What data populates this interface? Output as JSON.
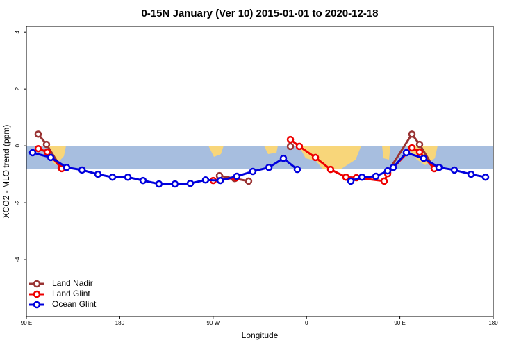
{
  "chart_data": {
    "type": "line",
    "title": "0-15N January (Ver 10)   2015-01-01 to 2020-12-18",
    "xlabel": "Longitude",
    "ylabel": "XCO2 - MLO trend (ppm)",
    "xlim": [
      0,
      360
    ],
    "xticks": [
      {
        "value": 0,
        "label": "90 E"
      },
      {
        "value": 72,
        "label": "180"
      },
      {
        "value": 144,
        "label": "90 W"
      },
      {
        "value": 216,
        "label": "0"
      },
      {
        "value": 288,
        "label": "90 E"
      },
      {
        "value": 360,
        "label": "180"
      }
    ],
    "ylim": [
      -6.0,
      4.2
    ],
    "yticks": [
      -4,
      -2,
      0,
      2,
      4
    ],
    "legend": "bottom-left",
    "series": [
      {
        "name": "Land Nadir",
        "color": "#993333",
        "x": [
          9.1,
          15.5,
          26.8,
          null,
          148.9,
          160.7,
          171.4,
          null,
          203.6,
          null,
          278.6,
          297.3,
          303.2,
          314.5
        ],
        "values": [
          0.41,
          0.05,
          -0.78,
          null,
          -1.05,
          -1.15,
          -1.24,
          null,
          -0.02,
          null,
          -0.93,
          0.41,
          0.05,
          -0.8
        ]
      },
      {
        "name": "Land Glint",
        "color": "#ee0000",
        "x": [
          9.1,
          16.1,
          27.3,
          null,
          144.1,
          161.8,
          null,
          203.6,
          210.5,
          222.9,
          234.6,
          246.4,
          254.5,
          275.9,
          278.6,
          297.3,
          303.2,
          314.5
        ],
        "values": [
          -0.1,
          -0.22,
          -0.8,
          null,
          -1.22,
          -1.12,
          null,
          0.22,
          -0.02,
          -0.41,
          -0.83,
          -1.1,
          -1.12,
          -1.24,
          -0.98,
          -0.07,
          -0.22,
          -0.8
        ]
      },
      {
        "name": "Ocean Glint",
        "color": "#0000dd",
        "x": [
          4.8,
          18.8,
          31.1,
          42.9,
          55.2,
          66.4,
          78.2,
          90.0,
          102.3,
          114.6,
          126.4,
          138.2,
          149.5,
          162.3,
          174.6,
          187.0,
          198.2,
          208.9,
          null,
          250.2,
          258.8,
          269.5,
          278.6,
          282.9,
          293.0,
          306.4,
          318.2,
          330.0,
          342.9,
          354.1
        ],
        "values": [
          -0.24,
          -0.41,
          -0.76,
          -0.85,
          -1.0,
          -1.1,
          -1.1,
          -1.22,
          -1.34,
          -1.34,
          -1.32,
          -1.2,
          -1.22,
          -1.07,
          -0.9,
          -0.76,
          -0.44,
          -0.83,
          null,
          -1.24,
          -1.1,
          -1.07,
          -0.88,
          -0.76,
          -0.24,
          -0.44,
          -0.76,
          -0.85,
          -1.0,
          -1.1
        ]
      }
    ]
  }
}
